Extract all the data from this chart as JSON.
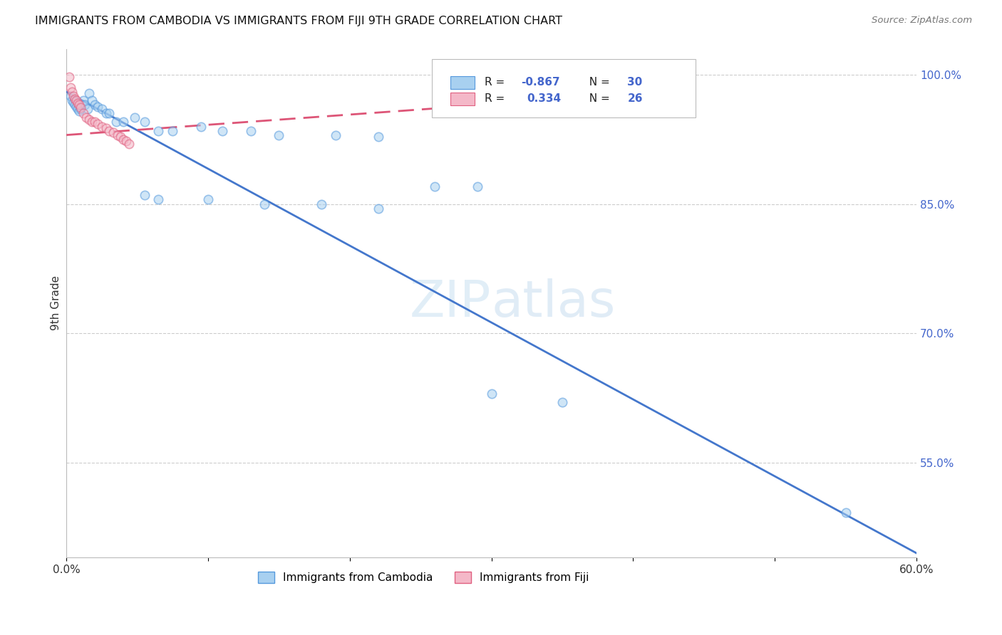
{
  "title": "IMMIGRANTS FROM CAMBODIA VS IMMIGRANTS FROM FIJI 9TH GRADE CORRELATION CHART",
  "source": "Source: ZipAtlas.com",
  "ylabel": "9th Grade",
  "xlim": [
    0.0,
    0.6
  ],
  "ylim": [
    0.44,
    1.03
  ],
  "ytick_vals": [
    1.0,
    0.85,
    0.7,
    0.55
  ],
  "ytick_labels": [
    "100.0%",
    "85.0%",
    "70.0%",
    "55.0%"
  ],
  "xtick_vals": [
    0.0,
    0.1,
    0.2,
    0.3,
    0.4,
    0.5,
    0.6
  ],
  "xtick_labels": [
    "0.0%",
    "",
    "",
    "",
    "",
    "",
    "60.0%"
  ],
  "cambodia_color": "#a8d0f0",
  "fiji_color": "#f4b8c8",
  "cambodia_edge": "#5599dd",
  "fiji_edge": "#e06080",
  "cambodia_line_color": "#4477cc",
  "fiji_line_color": "#dd5577",
  "right_axis_color": "#4466cc",
  "grid_color": "#cccccc",
  "background_color": "#ffffff",
  "marker_size": 80,
  "marker_alpha": 0.55,
  "watermark_color": "#d5e8f5",
  "cam_line_x0": 0.0,
  "cam_line_y0": 0.98,
  "cam_line_x1": 0.6,
  "cam_line_y1": 0.445,
  "fij_line_x0": 0.0,
  "fij_line_y0": 0.93,
  "fij_line_x1": 0.38,
  "fij_line_y1": 0.975,
  "scatter_cambodia_x": [
    0.003,
    0.004,
    0.005,
    0.006,
    0.007,
    0.008,
    0.009,
    0.01,
    0.012,
    0.013,
    0.015,
    0.016,
    0.018,
    0.02,
    0.022,
    0.025,
    0.028,
    0.03,
    0.035,
    0.04,
    0.048,
    0.055,
    0.065,
    0.075,
    0.095,
    0.11,
    0.13,
    0.15,
    0.19,
    0.22,
    0.26,
    0.29,
    0.055,
    0.065,
    0.1,
    0.14,
    0.18,
    0.22,
    0.3,
    0.35,
    0.55
  ],
  "scatter_cambodia_y": [
    0.975,
    0.97,
    0.968,
    0.965,
    0.963,
    0.96,
    0.958,
    0.96,
    0.97,
    0.965,
    0.96,
    0.978,
    0.97,
    0.965,
    0.963,
    0.96,
    0.955,
    0.955,
    0.945,
    0.945,
    0.95,
    0.945,
    0.935,
    0.935,
    0.94,
    0.935,
    0.935,
    0.93,
    0.93,
    0.928,
    0.87,
    0.87,
    0.86,
    0.855,
    0.855,
    0.85,
    0.85,
    0.845,
    0.63,
    0.62,
    0.492
  ],
  "scatter_fiji_x": [
    0.002,
    0.003,
    0.004,
    0.005,
    0.006,
    0.007,
    0.008,
    0.009,
    0.01,
    0.012,
    0.014,
    0.016,
    0.018,
    0.02,
    0.022,
    0.025,
    0.028,
    0.03,
    0.033,
    0.036,
    0.038,
    0.04,
    0.042,
    0.044,
    0.3,
    0.33
  ],
  "scatter_fiji_y": [
    0.997,
    0.985,
    0.98,
    0.975,
    0.972,
    0.97,
    0.967,
    0.965,
    0.962,
    0.955,
    0.95,
    0.948,
    0.945,
    0.945,
    0.943,
    0.94,
    0.938,
    0.935,
    0.933,
    0.93,
    0.928,
    0.925,
    0.923,
    0.92,
    0.96,
    0.963
  ]
}
